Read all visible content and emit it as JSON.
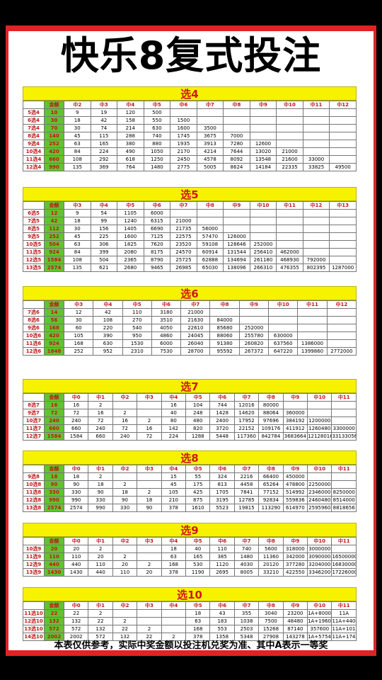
{
  "title": "快乐8复式投注",
  "footer": "本表仅供参考，实际中奖金额以投注机兑奖为准、其中A表示一等奖",
  "sections": [
    {
      "name": "选4",
      "headers": [
        "",
        "金额",
        "中2",
        "中3",
        "中4",
        "中5",
        "中6",
        "中7",
        "中8",
        "中9",
        "中10",
        "中11",
        "中12"
      ],
      "rows": [
        [
          "5选4",
          "10",
          "9",
          "19",
          "120",
          "500",
          "",
          "",
          "",
          "",
          "",
          "",
          ""
        ],
        [
          "6选4",
          "30",
          "18",
          "42",
          "158",
          "550",
          "1500",
          "",
          "",
          "",
          "",
          "",
          ""
        ],
        [
          "7选4",
          "70",
          "30",
          "74",
          "214",
          "630",
          "1600",
          "3500",
          "",
          "",
          "",
          "",
          ""
        ],
        [
          "8选4",
          "140",
          "45",
          "115",
          "288",
          "740",
          "1745",
          "3675",
          "7000",
          "",
          "",
          "",
          ""
        ],
        [
          "9选4",
          "252",
          "63",
          "165",
          "380",
          "880",
          "1935",
          "3913",
          "7280",
          "12600",
          "",
          "",
          ""
        ],
        [
          "10选4",
          "420",
          "84",
          "224",
          "490",
          "1050",
          "2170",
          "4214",
          "7644",
          "13020",
          "21000",
          "",
          ""
        ],
        [
          "11选4",
          "660",
          "108",
          "292",
          "618",
          "1250",
          "2450",
          "4578",
          "8092",
          "13548",
          "21600",
          "33000",
          ""
        ],
        [
          "12选4",
          "990",
          "135",
          "369",
          "764",
          "1480",
          "2775",
          "5005",
          "8624",
          "14184",
          "22335",
          "33825",
          "49500"
        ]
      ]
    },
    {
      "name": "选5",
      "headers": [
        "",
        "金额",
        "中3",
        "中4",
        "中5",
        "中6",
        "中7",
        "中8",
        "中9",
        "中10",
        "中11",
        "中12",
        "中13"
      ],
      "rows": [
        [
          "6选5",
          "12",
          "9",
          "54",
          "1105",
          "6000",
          "",
          "",
          "",
          "",
          "",
          "",
          ""
        ],
        [
          "7选5",
          "42",
          "18",
          "99",
          "1240",
          "6315",
          "21000",
          "",
          "",
          "",
          "",
          "",
          ""
        ],
        [
          "8选5",
          "112",
          "30",
          "156",
          "1405",
          "6690",
          "21735",
          "56000",
          "",
          "",
          "",
          "",
          ""
        ],
        [
          "9选5",
          "252",
          "45",
          "225",
          "1600",
          "7125",
          "22575",
          "57470",
          "126000",
          "",
          "",
          "",
          ""
        ],
        [
          "10选5",
          "504",
          "63",
          "306",
          "1825",
          "7620",
          "23520",
          "59108",
          "128646",
          "252000",
          "",
          "",
          ""
        ],
        [
          "11选5",
          "924",
          "84",
          "399",
          "2080",
          "8175",
          "24570",
          "60914",
          "131544",
          "256410",
          "462000",
          "",
          ""
        ],
        [
          "12选5",
          "1584",
          "108",
          "504",
          "2365",
          "8790",
          "25725",
          "62888",
          "134694",
          "261180",
          "468930",
          "792000",
          ""
        ],
        [
          "13选5",
          "2574",
          "135",
          "621",
          "2680",
          "9465",
          "26985",
          "65030",
          "138096",
          "266310",
          "476355",
          "802395",
          "1287000"
        ]
      ]
    },
    {
      "name": "选6",
      "headers": [
        "",
        "金额",
        "中3",
        "中4",
        "中5",
        "中6",
        "中7",
        "中8",
        "中9",
        "中10",
        "中11",
        "中12"
      ],
      "rows": [
        [
          "7选6",
          "14",
          "12",
          "42",
          "110",
          "3180",
          "21000",
          "",
          "",
          "",
          "",
          ""
        ],
        [
          "8选6",
          "56",
          "30",
          "108",
          "270",
          "3510",
          "21630",
          "84000",
          "",
          "",
          "",
          ""
        ],
        [
          "9选6",
          "168",
          "60",
          "220",
          "540",
          "4050",
          "22610",
          "85680",
          "252000",
          "",
          "",
          ""
        ],
        [
          "10选6",
          "420",
          "105",
          "390",
          "950",
          "4860",
          "24045",
          "88060",
          "255780",
          "630000",
          "",
          ""
        ],
        [
          "11选6",
          "924",
          "168",
          "630",
          "1530",
          "6000",
          "26040",
          "91380",
          "260820",
          "637560",
          "1386000",
          ""
        ],
        [
          "12选6",
          "1848",
          "252",
          "952",
          "2310",
          "7530",
          "28700",
          "95592",
          "267372",
          "647220",
          "1399860",
          "2772000"
        ]
      ]
    },
    {
      "name": "选7",
      "headers": [
        "",
        "金额",
        "中0",
        "中1",
        "中2",
        "中3",
        "中4",
        "中5",
        "中6",
        "中7",
        "中8",
        "中9",
        "中10",
        "中11"
      ],
      "rows": [
        [
          "8选7",
          "16",
          "16",
          "2",
          "",
          "",
          "16",
          "104",
          "744",
          "12016",
          "80000",
          "",
          "",
          ""
        ],
        [
          "9选7",
          "72",
          "72",
          "16",
          "2",
          "",
          "40",
          "248",
          "1428",
          "14620",
          "88064",
          "360000",
          "",
          ""
        ],
        [
          "10选7",
          "240",
          "240",
          "72",
          "16",
          "2",
          "80",
          "480",
          "2400",
          "17952",
          "97696",
          "384192",
          "1200000",
          ""
        ],
        [
          "11选7",
          "660",
          "660",
          "240",
          "72",
          "16",
          "142",
          "820",
          "3720",
          "22152",
          "109176",
          "411912",
          "1260480",
          "3300000"
        ],
        [
          "12选7",
          "1584",
          "1584",
          "660",
          "240",
          "72",
          "224",
          "1288",
          "5448",
          "117360",
          "842784",
          "3683664",
          "12128016",
          "33133056"
        ]
      ]
    },
    {
      "name": "选8",
      "headers": [
        "",
        "金额",
        "中0",
        "中1",
        "中2",
        "中3",
        "中4",
        "中5",
        "中6",
        "中7",
        "中8",
        "中9",
        "中10",
        "中11"
      ],
      "rows": [
        [
          "9选8",
          "18",
          "18",
          "2",
          "",
          "",
          "15",
          "55",
          "324",
          "2216",
          "66400",
          "450000",
          "",
          ""
        ],
        [
          "10选8",
          "90",
          "90",
          "18",
          "2",
          "",
          "45",
          "175",
          "813",
          "4458",
          "65264",
          "478800",
          "2250000",
          ""
        ],
        [
          "11选8",
          "330",
          "330",
          "90",
          "18",
          "2",
          "105",
          "425",
          "1705",
          "7841",
          "77152",
          "514992",
          "2346000",
          "8250000"
        ],
        [
          "12选8",
          "990",
          "990",
          "330",
          "90",
          "18",
          "210",
          "875",
          "3195",
          "12785",
          "92834",
          "559836",
          "2460480",
          "8514000"
        ],
        [
          "13选8",
          "2574",
          "2574",
          "990",
          "330",
          "90",
          "378",
          "1610",
          "5523",
          "19815",
          "113290",
          "614970",
          "2595960",
          "8818656"
        ]
      ]
    },
    {
      "name": "选9",
      "headers": [
        "",
        "金额",
        "中0",
        "中1",
        "中2",
        "中3",
        "中4",
        "中5",
        "中6",
        "中7",
        "中8",
        "中9",
        "中10",
        "中11"
      ],
      "rows": [
        [
          "10选9",
          "20",
          "20",
          "2",
          "",
          "",
          "18",
          "40",
          "110",
          "740",
          "5600",
          "318000",
          "3000000",
          ""
        ],
        [
          "11选9",
          "110",
          "110",
          "20",
          "2",
          "",
          "63",
          "165",
          "385",
          "1480",
          "11360",
          "342000",
          "3090000",
          "16500000"
        ],
        [
          "12选9",
          "440",
          "440",
          "110",
          "20",
          "2",
          "168",
          "530",
          "1120",
          "4030",
          "20120",
          "377280",
          "3204000",
          "16830000"
        ],
        [
          "13选9",
          "1430",
          "1430",
          "440",
          "110",
          "20",
          "378",
          "1190",
          "2695",
          "8005",
          "33210",
          "422550",
          "3346200",
          "17226000"
        ]
      ]
    },
    {
      "name": "选10",
      "headers": [
        "",
        "金额",
        "中0",
        "中1",
        "中2",
        "中3",
        "中4",
        "中5",
        "中6",
        "中7",
        "中8",
        "中9",
        "中10",
        "中11"
      ],
      "rows": [
        [
          "11选10",
          "22",
          "22",
          "2",
          "",
          "",
          "",
          "18",
          "43",
          "355",
          "3040",
          "23200",
          "1A+80000",
          "11A"
        ],
        [
          "12选10",
          "132",
          "132",
          "22",
          "2",
          "",
          "",
          "63",
          "183",
          "1038",
          "7500",
          "48480",
          "1A+196000",
          "11A+440000"
        ],
        [
          "13选10",
          "572",
          "572",
          "132",
          "22",
          "2",
          "",
          "168",
          "553",
          "2503",
          "15268",
          "87140",
          "357600",
          "11A+1012000"
        ],
        [
          "14选10",
          "2002",
          "2002",
          "572",
          "132",
          "22",
          "2",
          "378",
          "1358",
          "5348",
          "27908",
          "143278",
          "1A+575450",
          "11A+1742400"
        ]
      ]
    }
  ]
}
